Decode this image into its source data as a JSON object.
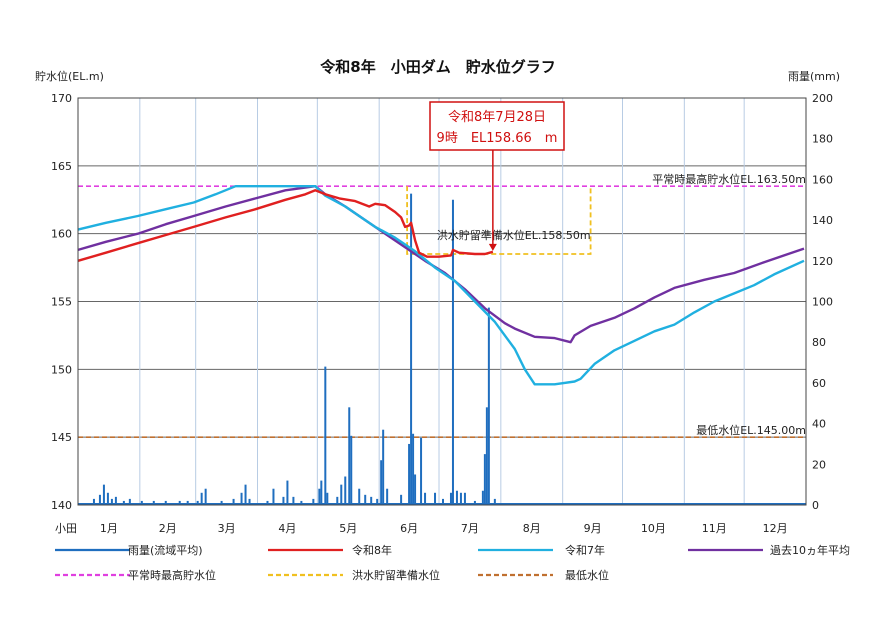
{
  "chart_data": {
    "type": "line",
    "title": "令和8年　小田ダム　貯水位グラフ",
    "ylabel_left": "貯水位(EL.m)",
    "ylabel_right": "雨量(mm)",
    "x_corner_label": "小田",
    "months": [
      "1月",
      "2月",
      "3月",
      "4月",
      "5月",
      "6月",
      "7月",
      "8月",
      "9月",
      "10月",
      "11月",
      "12月"
    ],
    "ylim_left": [
      140,
      170
    ],
    "ylim_right": [
      0,
      200
    ],
    "yticks_left": [
      "140",
      "145",
      "150",
      "155",
      "160",
      "165",
      "170"
    ],
    "yticks_right": [
      "0",
      "20",
      "40",
      "60",
      "80",
      "100",
      "120",
      "140",
      "160",
      "180",
      "200"
    ],
    "grid": true,
    "reference_lines": [
      {
        "name": "平常時最高貯水位",
        "label": "平常時最高貯水位EL.163.50m",
        "value": 163.5,
        "color": "#e040e0"
      },
      {
        "name": "最低水位",
        "label": "最低水位EL.145.00m",
        "value": 145.0,
        "color": "#c07030"
      }
    ],
    "flood_line": {
      "name": "洪水貯留準備水位",
      "label": "洪水貯留準備水位EL.158.50m",
      "value": 158.5,
      "color": "#f0c020",
      "start_day": 166,
      "end_day": 258
    },
    "callout": {
      "line1": "令和8年7月28日",
      "line2": "9時　EL158.66　m",
      "day": 209,
      "value": 158.66
    },
    "series": [
      {
        "name": "令和8年",
        "color": "#e02020",
        "points": [
          [
            1,
            158.0
          ],
          [
            15,
            158.6
          ],
          [
            31,
            159.3
          ],
          [
            45,
            159.9
          ],
          [
            59,
            160.5
          ],
          [
            75,
            161.2
          ],
          [
            90,
            161.8
          ],
          [
            105,
            162.5
          ],
          [
            115,
            162.9
          ],
          [
            120,
            163.2
          ],
          [
            125,
            162.9
          ],
          [
            132,
            162.6
          ],
          [
            140,
            162.4
          ],
          [
            147,
            162.0
          ],
          [
            150,
            162.2
          ],
          [
            155,
            162.1
          ],
          [
            160,
            161.6
          ],
          [
            163,
            161.2
          ],
          [
            165,
            160.5
          ],
          [
            167,
            160.6
          ],
          [
            168,
            160.8
          ],
          [
            170,
            159.5
          ],
          [
            172,
            158.6
          ],
          [
            176,
            158.3
          ],
          [
            182,
            158.3
          ],
          [
            188,
            158.4
          ],
          [
            189,
            158.8
          ],
          [
            192,
            158.6
          ],
          [
            200,
            158.5
          ],
          [
            205,
            158.5
          ],
          [
            209,
            158.66
          ]
        ]
      },
      {
        "name": "令和7年",
        "color": "#20b0e0",
        "points": [
          [
            1,
            160.3
          ],
          [
            15,
            160.8
          ],
          [
            31,
            161.3
          ],
          [
            45,
            161.8
          ],
          [
            59,
            162.3
          ],
          [
            70,
            162.9
          ],
          [
            80,
            163.5
          ],
          [
            90,
            163.5
          ],
          [
            105,
            163.5
          ],
          [
            120,
            163.5
          ],
          [
            125,
            162.8
          ],
          [
            135,
            162.0
          ],
          [
            145,
            161.0
          ],
          [
            150,
            160.5
          ],
          [
            160,
            159.7
          ],
          [
            170,
            158.7
          ],
          [
            180,
            157.5
          ],
          [
            190,
            156.5
          ],
          [
            200,
            155.0
          ],
          [
            210,
            153.5
          ],
          [
            220,
            151.5
          ],
          [
            225,
            150.0
          ],
          [
            230,
            148.9
          ],
          [
            240,
            148.9
          ],
          [
            250,
            149.1
          ],
          [
            253,
            149.3
          ],
          [
            260,
            150.4
          ],
          [
            270,
            151.4
          ],
          [
            280,
            152.1
          ],
          [
            290,
            152.8
          ],
          [
            300,
            153.3
          ],
          [
            310,
            154.2
          ],
          [
            320,
            155.0
          ],
          [
            330,
            155.6
          ],
          [
            340,
            156.2
          ],
          [
            350,
            157.0
          ],
          [
            365,
            158.0
          ]
        ]
      },
      {
        "name": "過去10ヵ年平均",
        "color": "#7030a0",
        "points": [
          [
            1,
            158.8
          ],
          [
            15,
            159.4
          ],
          [
            31,
            160.0
          ],
          [
            45,
            160.7
          ],
          [
            59,
            161.3
          ],
          [
            75,
            162.0
          ],
          [
            90,
            162.6
          ],
          [
            105,
            163.2
          ],
          [
            120,
            163.5
          ],
          [
            125,
            162.9
          ],
          [
            135,
            162.0
          ],
          [
            145,
            161.0
          ],
          [
            155,
            160.0
          ],
          [
            165,
            159.0
          ],
          [
            175,
            158.0
          ],
          [
            185,
            157.1
          ],
          [
            195,
            155.9
          ],
          [
            205,
            154.5
          ],
          [
            215,
            153.4
          ],
          [
            220,
            153.0
          ],
          [
            230,
            152.4
          ],
          [
            240,
            152.3
          ],
          [
            248,
            152.0
          ],
          [
            250,
            152.5
          ],
          [
            258,
            153.2
          ],
          [
            270,
            153.8
          ],
          [
            280,
            154.5
          ],
          [
            290,
            155.3
          ],
          [
            300,
            156.0
          ],
          [
            315,
            156.6
          ],
          [
            330,
            157.1
          ],
          [
            345,
            157.9
          ],
          [
            365,
            158.9
          ]
        ]
      }
    ],
    "rainfall": {
      "name": "雨量(流域平均)",
      "color": "#1f6ebf",
      "values": [
        [
          9,
          3
        ],
        [
          12,
          5
        ],
        [
          14,
          10
        ],
        [
          16,
          6
        ],
        [
          18,
          3
        ],
        [
          20,
          4
        ],
        [
          24,
          2
        ],
        [
          27,
          3
        ],
        [
          33,
          2
        ],
        [
          39,
          2
        ],
        [
          45,
          2
        ],
        [
          52,
          2
        ],
        [
          56,
          2
        ],
        [
          61,
          2
        ],
        [
          63,
          6
        ],
        [
          65,
          8
        ],
        [
          73,
          2
        ],
        [
          79,
          3
        ],
        [
          83,
          6
        ],
        [
          85,
          10
        ],
        [
          87,
          3
        ],
        [
          96,
          2
        ],
        [
          99,
          8
        ],
        [
          104,
          4
        ],
        [
          106,
          12
        ],
        [
          109,
          4
        ],
        [
          113,
          2
        ],
        [
          119,
          3
        ],
        [
          122,
          8
        ],
        [
          123,
          12
        ],
        [
          125,
          68
        ],
        [
          126,
          6
        ],
        [
          131,
          4
        ],
        [
          133,
          10
        ],
        [
          135,
          14
        ],
        [
          137,
          48
        ],
        [
          138,
          34
        ],
        [
          142,
          8
        ],
        [
          145,
          5
        ],
        [
          148,
          4
        ],
        [
          151,
          3
        ],
        [
          153,
          22
        ],
        [
          154,
          37
        ],
        [
          156,
          8
        ],
        [
          163,
          5
        ],
        [
          167,
          30
        ],
        [
          168,
          153
        ],
        [
          169,
          35
        ],
        [
          170,
          15
        ],
        [
          173,
          33
        ],
        [
          175,
          6
        ],
        [
          180,
          6
        ],
        [
          184,
          3
        ],
        [
          188,
          6
        ],
        [
          189,
          150
        ],
        [
          191,
          7
        ],
        [
          193,
          6
        ],
        [
          195,
          6
        ],
        [
          200,
          2
        ],
        [
          204,
          7
        ],
        [
          205,
          25
        ],
        [
          206,
          48
        ],
        [
          207,
          97
        ],
        [
          210,
          3
        ]
      ]
    },
    "legend": [
      {
        "label": "雨量(流域平均)",
        "color": "#1f6ebf",
        "style": "solid"
      },
      {
        "label": "令和8年",
        "color": "#e02020",
        "style": "solid"
      },
      {
        "label": "令和7年",
        "color": "#20b0e0",
        "style": "solid"
      },
      {
        "label": "過去10ヵ年平均",
        "color": "#7030a0",
        "style": "solid"
      },
      {
        "label": "平常時最高貯水位",
        "color": "#e040e0",
        "style": "dashed"
      },
      {
        "label": "洪水貯留準備水位",
        "color": "#f0c020",
        "style": "dashed"
      },
      {
        "label": "最低水位",
        "color": "#c07030",
        "style": "dashed"
      }
    ]
  }
}
